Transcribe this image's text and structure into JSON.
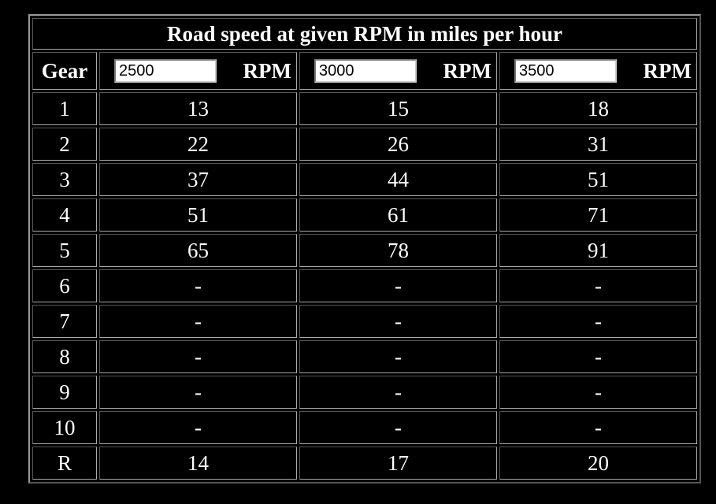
{
  "table": {
    "title": "Road speed at given RPM in miles per hour",
    "header": {
      "gear": "Gear",
      "columns": [
        {
          "rpm": 2500,
          "unit": "RPM"
        },
        {
          "rpm": 3000,
          "unit": "RPM"
        },
        {
          "rpm": 3500,
          "unit": "RPM"
        }
      ]
    },
    "rows": [
      [
        1,
        13,
        15,
        18
      ],
      [
        2,
        22,
        26,
        31
      ],
      [
        3,
        37,
        44,
        51
      ],
      [
        4,
        51,
        61,
        71
      ],
      [
        5,
        65,
        78,
        91
      ],
      [
        6,
        "-",
        "-",
        "-"
      ],
      [
        7,
        "-",
        "-",
        "-"
      ],
      [
        8,
        "-",
        "-",
        "-"
      ],
      [
        9,
        "-",
        "-",
        "-"
      ],
      [
        10,
        "-",
        "-",
        "-"
      ],
      [
        "R",
        14,
        17,
        20
      ]
    ]
  }
}
